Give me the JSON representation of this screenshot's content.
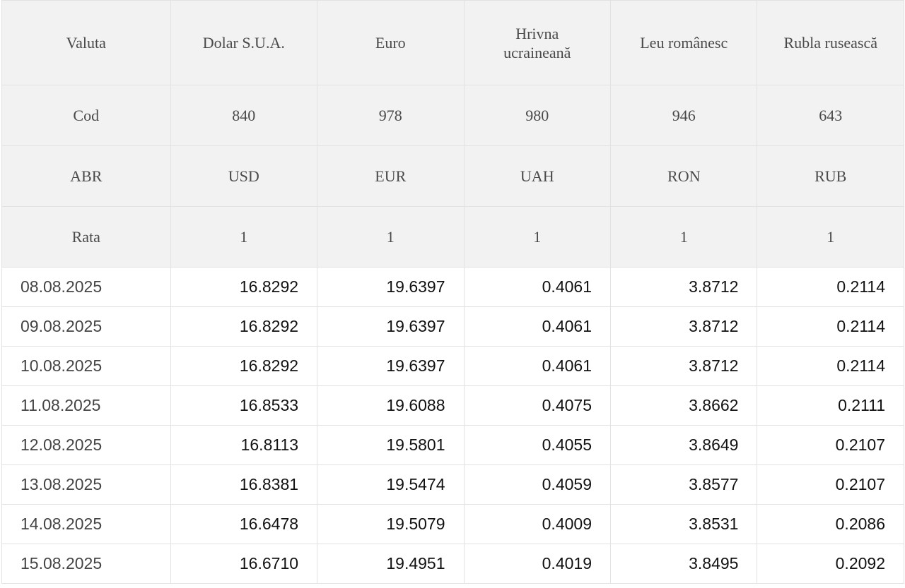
{
  "header": {
    "title_row": [
      "Valuta",
      "Dolar S.U.A.",
      "Euro",
      "Hrivna ucraineană",
      "Leu românesc",
      "Rubla rusească"
    ],
    "cod_row": [
      "Cod",
      "840",
      "978",
      "980",
      "946",
      "643"
    ],
    "abr_row": [
      "ABR",
      "USD",
      "EUR",
      "UAH",
      "RON",
      "RUB"
    ],
    "rata_row": [
      "Rata",
      "1",
      "1",
      "1",
      "1",
      "1"
    ]
  },
  "rows": [
    {
      "date": "08.08.2025",
      "values": [
        "16.8292",
        "19.6397",
        "0.4061",
        "3.8712",
        "0.2114"
      ]
    },
    {
      "date": "09.08.2025",
      "values": [
        "16.8292",
        "19.6397",
        "0.4061",
        "3.8712",
        "0.2114"
      ]
    },
    {
      "date": "10.08.2025",
      "values": [
        "16.8292",
        "19.6397",
        "0.4061",
        "3.8712",
        "0.2114"
      ]
    },
    {
      "date": "11.08.2025",
      "values": [
        "16.8533",
        "19.6088",
        "0.4075",
        "3.8662",
        "0.2111"
      ]
    },
    {
      "date": "12.08.2025",
      "values": [
        "16.8113",
        "19.5801",
        "0.4055",
        "3.8649",
        "0.2107"
      ]
    },
    {
      "date": "13.08.2025",
      "values": [
        "16.8381",
        "19.5474",
        "0.4059",
        "3.8577",
        "0.2107"
      ]
    },
    {
      "date": "14.08.2025",
      "values": [
        "16.6478",
        "19.5079",
        "0.4009",
        "3.8531",
        "0.2086"
      ]
    },
    {
      "date": "15.08.2025",
      "values": [
        "16.6710",
        "19.4951",
        "0.4019",
        "3.8495",
        "0.2092"
      ]
    }
  ]
}
